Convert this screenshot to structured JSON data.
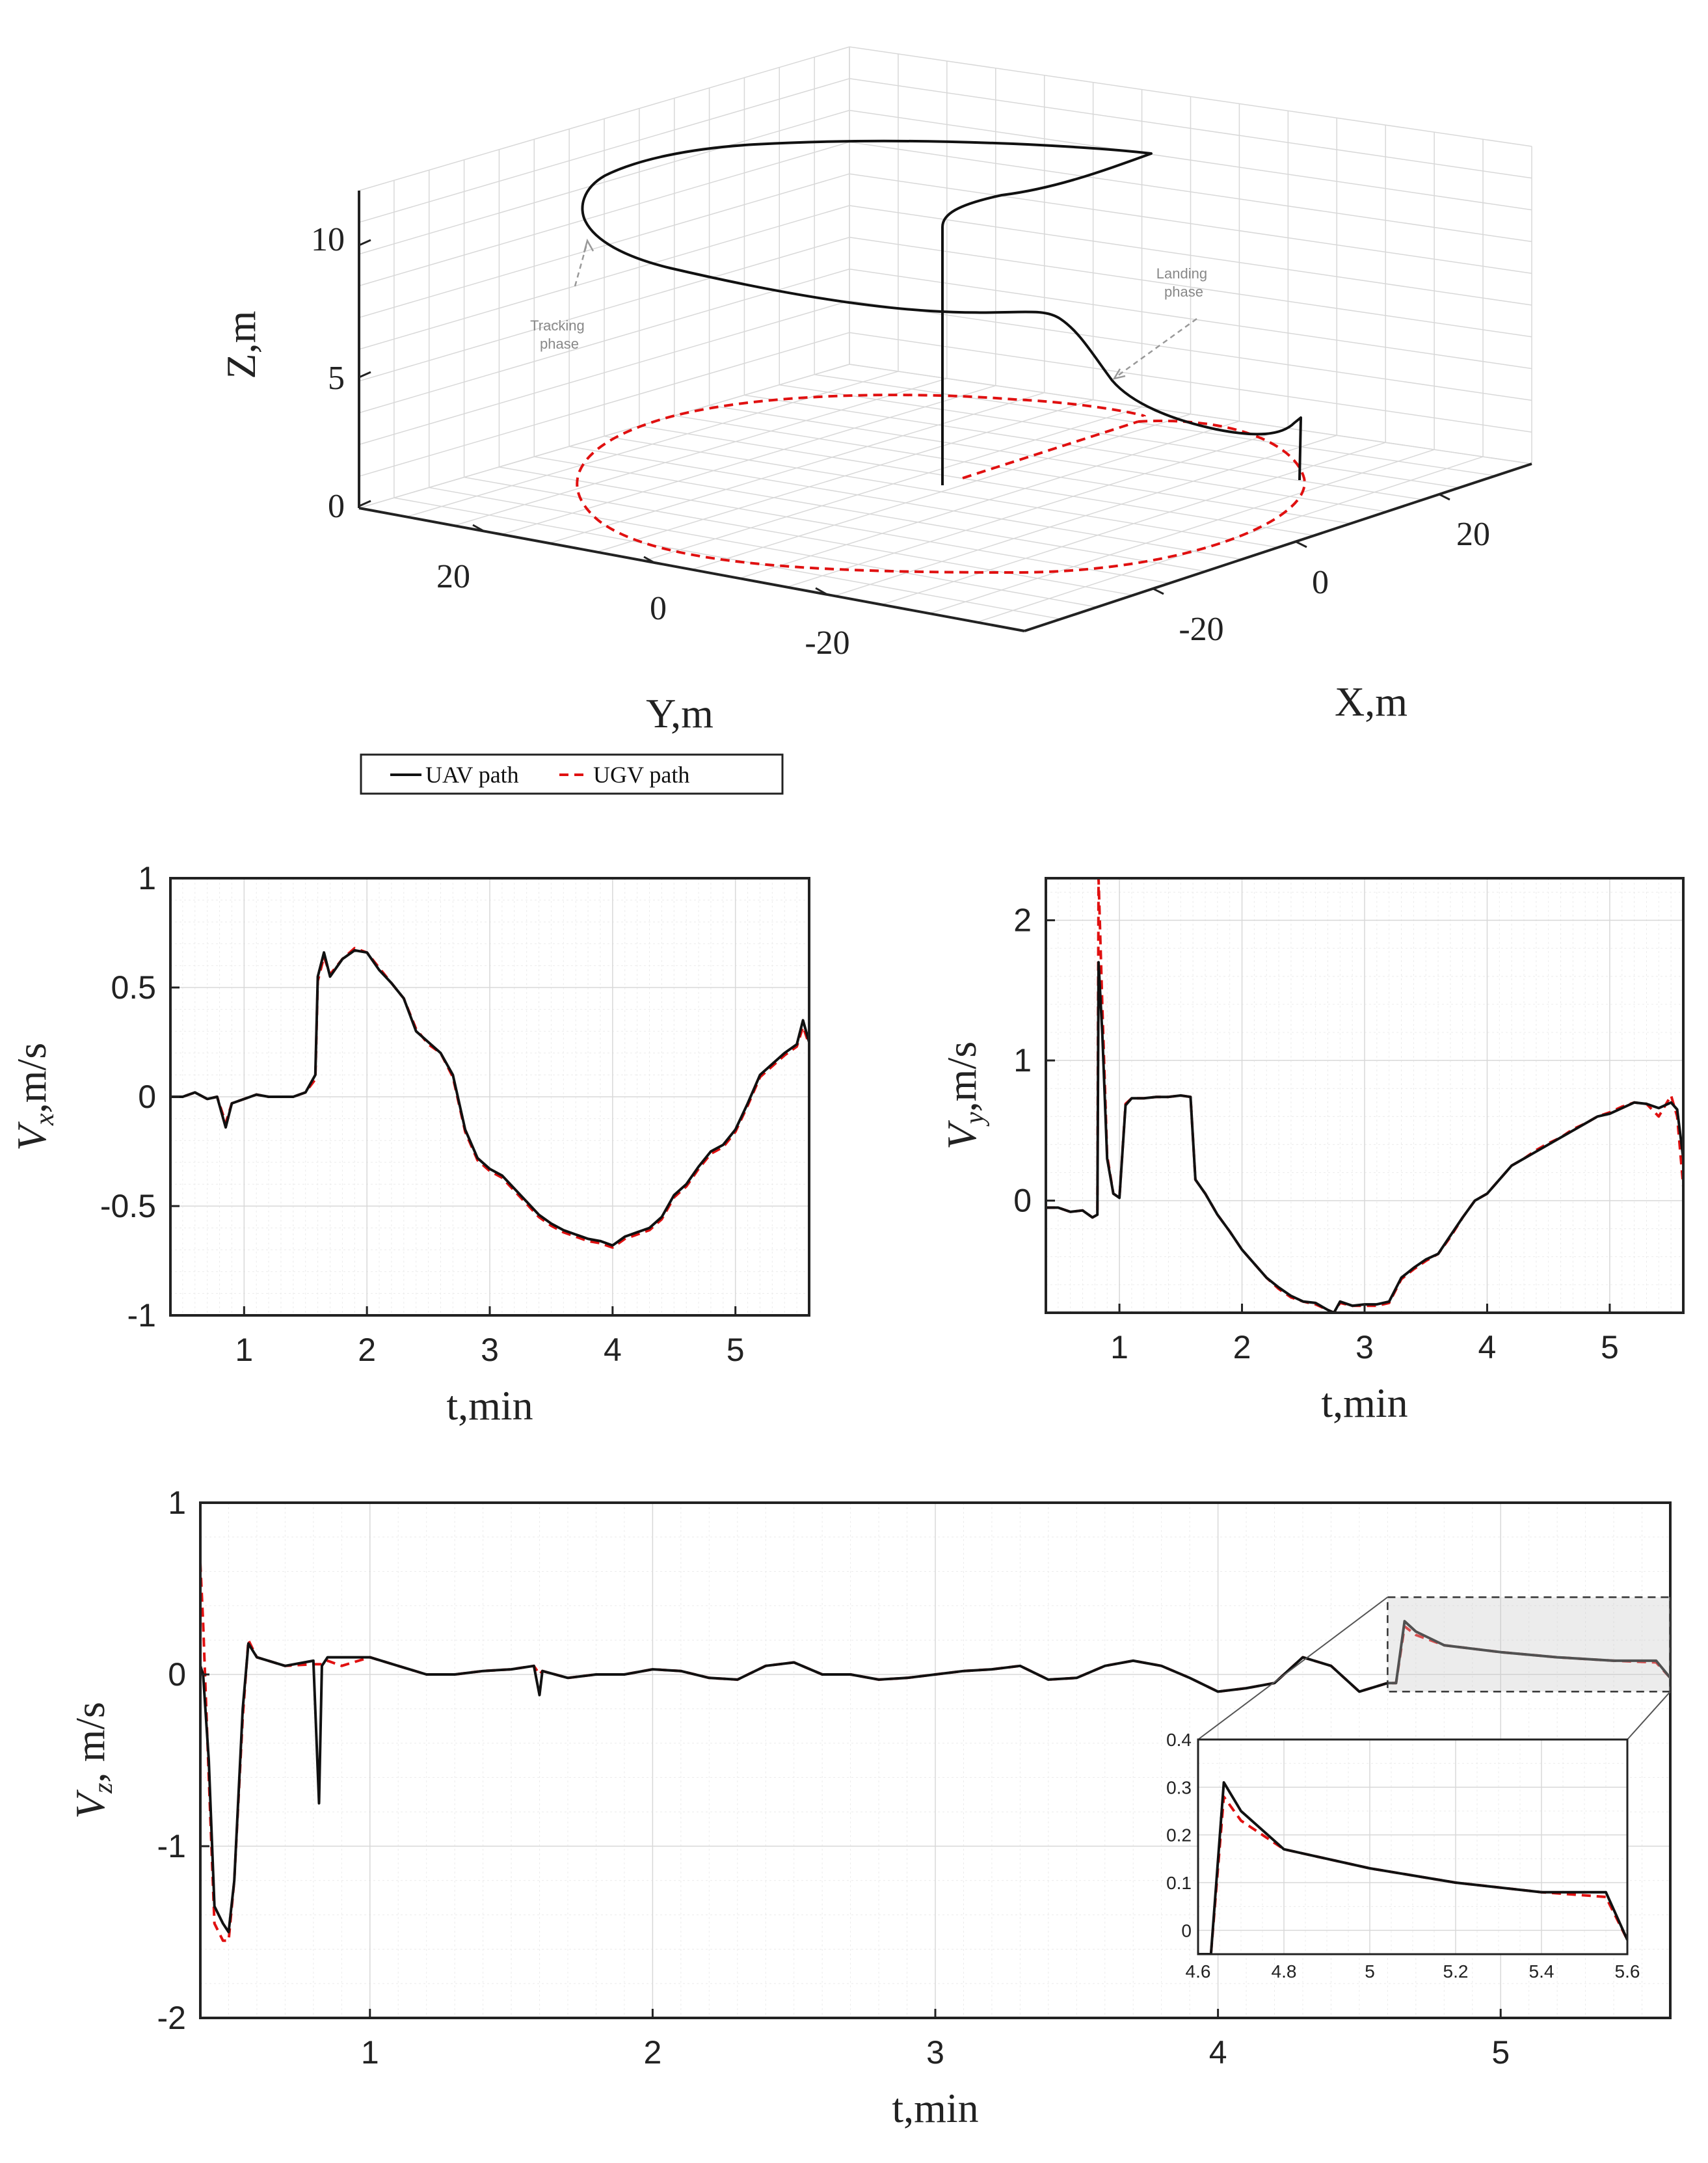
{
  "chart_data": [
    {
      "id": "path3d",
      "type": "line3d",
      "title": "",
      "xlabel": "X,m",
      "ylabel": "Y,m",
      "zlabel": "Z,m",
      "xticks": [
        -20,
        0,
        20
      ],
      "yticks": [
        20,
        0,
        -20
      ],
      "zticks": [
        0,
        5,
        10
      ],
      "xlim": [
        -35,
        35
      ],
      "ylim": [
        -35,
        35
      ],
      "zlim": [
        0,
        12
      ],
      "legend": [
        "UAV path",
        "UGV path"
      ],
      "annotations": [
        {
          "text": "Tracking\nphase"
        },
        {
          "text": "Landing\nphase"
        }
      ],
      "series": [
        {
          "name": "UGV path",
          "style": "red-dashed",
          "shape": "circle of radius ~28 m at Z=0"
        },
        {
          "name": "UAV path",
          "style": "black-solid",
          "shape": "vertical climb to ~11 m, loop tracking, descent to landing"
        }
      ]
    },
    {
      "id": "vx",
      "type": "line",
      "xlabel": "t,min",
      "ylabel": "V_x,m/s",
      "ylabel_main": "V",
      "ylabel_sub": "x",
      "ylabel_unit": ",m/s",
      "xlim": [
        0.4,
        5.6
      ],
      "ylim": [
        -1,
        1
      ],
      "xticks": [
        1,
        2,
        3,
        4,
        5
      ],
      "yticks": [
        1,
        0.5,
        0,
        -0.5,
        -1
      ],
      "ytick_labels": [
        "1",
        "0.5",
        "0",
        "-0.5",
        "-1"
      ],
      "x": [
        0.4,
        0.5,
        0.6,
        0.7,
        0.78,
        0.85,
        0.9,
        1.0,
        1.1,
        1.2,
        1.3,
        1.4,
        1.5,
        1.58,
        1.6,
        1.65,
        1.7,
        1.8,
        1.9,
        2.0,
        2.1,
        2.2,
        2.3,
        2.4,
        2.5,
        2.6,
        2.7,
        2.8,
        2.9,
        3.0,
        3.1,
        3.2,
        3.3,
        3.4,
        3.5,
        3.6,
        3.7,
        3.8,
        3.9,
        4.0,
        4.1,
        4.2,
        4.3,
        4.4,
        4.5,
        4.6,
        4.7,
        4.8,
        4.9,
        5.0,
        5.1,
        5.2,
        5.3,
        5.4,
        5.5,
        5.55,
        5.6
      ],
      "series": [
        {
          "name": "UAV",
          "values": [
            0.0,
            0.0,
            0.02,
            -0.01,
            0.0,
            -0.14,
            -0.03,
            -0.01,
            0.01,
            0.0,
            0.0,
            0.0,
            0.02,
            0.1,
            0.55,
            0.66,
            0.55,
            0.63,
            0.67,
            0.66,
            0.58,
            0.52,
            0.45,
            0.3,
            0.25,
            0.2,
            0.1,
            -0.15,
            -0.28,
            -0.33,
            -0.36,
            -0.42,
            -0.48,
            -0.54,
            -0.58,
            -0.61,
            -0.63,
            -0.65,
            -0.66,
            -0.68,
            -0.64,
            -0.62,
            -0.6,
            -0.55,
            -0.45,
            -0.4,
            -0.32,
            -0.25,
            -0.22,
            -0.15,
            -0.03,
            0.1,
            0.15,
            0.2,
            0.24,
            0.35,
            0.25
          ]
        },
        {
          "name": "UGV",
          "values": [
            0.0,
            0.0,
            0.02,
            -0.01,
            0.0,
            -0.12,
            -0.03,
            -0.01,
            0.01,
            0.0,
            0.0,
            0.0,
            0.02,
            0.08,
            0.53,
            0.64,
            0.56,
            0.63,
            0.68,
            0.66,
            0.59,
            0.52,
            0.45,
            0.31,
            0.24,
            0.2,
            0.09,
            -0.16,
            -0.29,
            -0.34,
            -0.37,
            -0.43,
            -0.49,
            -0.55,
            -0.59,
            -0.62,
            -0.64,
            -0.66,
            -0.67,
            -0.69,
            -0.65,
            -0.63,
            -0.61,
            -0.56,
            -0.46,
            -0.41,
            -0.33,
            -0.26,
            -0.23,
            -0.16,
            -0.04,
            0.09,
            0.14,
            0.19,
            0.23,
            0.32,
            0.24
          ]
        }
      ]
    },
    {
      "id": "vy",
      "type": "line",
      "xlabel": "t,min",
      "ylabel": "V_y,m/s",
      "ylabel_main": "V",
      "ylabel_sub": "y",
      "ylabel_unit": ",m/s",
      "xlim": [
        0.4,
        5.6
      ],
      "ylim": [
        -0.8,
        2.3
      ],
      "xticks": [
        1,
        2,
        3,
        4,
        5
      ],
      "yticks": [
        2,
        1,
        0
      ],
      "ytick_labels": [
        "2",
        "1",
        "0"
      ],
      "x": [
        0.4,
        0.5,
        0.6,
        0.7,
        0.78,
        0.82,
        0.83,
        0.86,
        0.9,
        0.95,
        1.0,
        1.05,
        1.1,
        1.2,
        1.3,
        1.4,
        1.5,
        1.58,
        1.62,
        1.7,
        1.8,
        1.9,
        2.0,
        2.1,
        2.2,
        2.3,
        2.4,
        2.5,
        2.6,
        2.7,
        2.75,
        2.8,
        2.9,
        3.0,
        3.1,
        3.2,
        3.3,
        3.4,
        3.5,
        3.6,
        3.7,
        3.8,
        3.9,
        4.0,
        4.1,
        4.2,
        4.3,
        4.4,
        4.5,
        4.6,
        4.7,
        4.8,
        4.9,
        5.0,
        5.1,
        5.2,
        5.3,
        5.4,
        5.5,
        5.55,
        5.6
      ],
      "series": [
        {
          "name": "UAV",
          "values": [
            -0.05,
            -0.05,
            -0.08,
            -0.07,
            -0.12,
            -0.1,
            1.7,
            1.2,
            0.3,
            0.05,
            0.02,
            0.68,
            0.73,
            0.73,
            0.74,
            0.74,
            0.75,
            0.74,
            0.15,
            0.05,
            -0.1,
            -0.22,
            -0.35,
            -0.45,
            -0.55,
            -0.62,
            -0.68,
            -0.72,
            -0.73,
            -0.78,
            -0.8,
            -0.72,
            -0.75,
            -0.74,
            -0.74,
            -0.72,
            -0.55,
            -0.48,
            -0.42,
            -0.38,
            -0.25,
            -0.12,
            0.0,
            0.05,
            0.15,
            0.25,
            0.3,
            0.35,
            0.4,
            0.45,
            0.5,
            0.55,
            0.6,
            0.62,
            0.66,
            0.7,
            0.69,
            0.66,
            0.7,
            0.65,
            0.3
          ]
        },
        {
          "name": "UGV",
          "values": [
            -0.05,
            -0.05,
            -0.08,
            -0.07,
            -0.12,
            -0.1,
            2.3,
            1.4,
            0.32,
            0.05,
            0.02,
            0.69,
            0.73,
            0.73,
            0.74,
            0.74,
            0.75,
            0.74,
            0.15,
            0.05,
            -0.1,
            -0.22,
            -0.35,
            -0.45,
            -0.55,
            -0.63,
            -0.69,
            -0.72,
            -0.74,
            -0.78,
            -0.8,
            -0.73,
            -0.75,
            -0.75,
            -0.75,
            -0.73,
            -0.56,
            -0.49,
            -0.43,
            -0.38,
            -0.26,
            -0.12,
            0.0,
            0.05,
            0.15,
            0.25,
            0.3,
            0.36,
            0.41,
            0.45,
            0.51,
            0.55,
            0.6,
            0.63,
            0.67,
            0.7,
            0.69,
            0.6,
            0.75,
            0.6,
            0.1
          ]
        }
      ]
    },
    {
      "id": "vz",
      "type": "line",
      "xlabel": "t,min",
      "ylabel": "V_z, m/s",
      "ylabel_main": "V",
      "ylabel_sub": "z",
      "ylabel_unit": ", m/s",
      "xlim": [
        0.4,
        5.6
      ],
      "ylim": [
        -2,
        1
      ],
      "xticks": [
        1,
        2,
        3,
        4,
        5
      ],
      "yticks": [
        1,
        0,
        -1,
        -2
      ],
      "ytick_labels": [
        "1",
        "0",
        "-1",
        "-2"
      ],
      "x": [
        0.4,
        0.41,
        0.43,
        0.45,
        0.48,
        0.5,
        0.52,
        0.55,
        0.57,
        0.6,
        0.7,
        0.8,
        0.82,
        0.83,
        0.85,
        0.9,
        1.0,
        1.1,
        1.2,
        1.3,
        1.4,
        1.5,
        1.58,
        1.6,
        1.61,
        1.7,
        1.8,
        1.9,
        2.0,
        2.1,
        2.2,
        2.3,
        2.4,
        2.5,
        2.6,
        2.7,
        2.8,
        2.9,
        3.0,
        3.1,
        3.2,
        3.3,
        3.4,
        3.5,
        3.6,
        3.7,
        3.8,
        3.9,
        4.0,
        4.1,
        4.2,
        4.3,
        4.4,
        4.5,
        4.6,
        4.63,
        4.66,
        4.7,
        4.8,
        5.0,
        5.2,
        5.4,
        5.55,
        5.6
      ],
      "series": [
        {
          "name": "UAV",
          "values": [
            0.05,
            0.0,
            -0.5,
            -1.35,
            -1.45,
            -1.5,
            -1.2,
            -0.2,
            0.18,
            0.1,
            0.05,
            0.08,
            -0.75,
            0.05,
            0.1,
            0.1,
            0.1,
            0.05,
            0.0,
            0.0,
            0.02,
            0.03,
            0.05,
            -0.12,
            0.02,
            -0.02,
            0.0,
            0.0,
            0.03,
            0.02,
            -0.02,
            -0.03,
            0.05,
            0.07,
            0.0,
            0.0,
            -0.03,
            -0.02,
            0.0,
            0.02,
            0.03,
            0.05,
            -0.03,
            -0.02,
            0.05,
            0.08,
            0.05,
            -0.02,
            -0.1,
            -0.08,
            -0.05,
            0.1,
            0.05,
            -0.1,
            -0.05,
            -0.05,
            0.31,
            0.25,
            0.17,
            0.13,
            0.1,
            0.08,
            0.08,
            -0.02
          ]
        },
        {
          "name": "UGV",
          "values": [
            0.65,
            0.3,
            -0.6,
            -1.45,
            -1.55,
            -1.55,
            -1.2,
            -0.25,
            0.2,
            0.1,
            0.05,
            0.06,
            0.06,
            0.06,
            0.08,
            0.05,
            0.1,
            0.05,
            0.0,
            0.0,
            0.02,
            0.03,
            0.05,
            0.0,
            0.02,
            -0.02,
            0.0,
            0.0,
            0.03,
            0.02,
            -0.02,
            -0.03,
            0.05,
            0.07,
            0.0,
            0.0,
            -0.03,
            -0.02,
            0.0,
            0.02,
            0.03,
            0.05,
            -0.03,
            -0.02,
            0.05,
            0.08,
            0.05,
            -0.02,
            -0.1,
            -0.08,
            -0.05,
            0.1,
            0.05,
            -0.1,
            -0.05,
            -0.05,
            0.28,
            0.23,
            0.17,
            0.13,
            0.1,
            0.08,
            0.07,
            -0.02
          ]
        }
      ],
      "inset": {
        "xlim": [
          4.6,
          5.6
        ],
        "ylim": [
          -0.05,
          0.4
        ],
        "xticks": [
          4.6,
          4.8,
          5,
          5.2,
          5.4,
          5.6
        ],
        "xtick_labels": [
          "4.6",
          "4.8",
          "5",
          "5.2",
          "5.4",
          "5.6"
        ],
        "yticks": [
          0,
          0.1,
          0.2,
          0.3,
          0.4
        ],
        "ytick_labels": [
          "0",
          "0.1",
          "0.2",
          "0.3",
          "0.4"
        ],
        "zoom_region": {
          "x": [
            4.6,
            5.6
          ],
          "y": [
            -0.1,
            0.45
          ]
        }
      }
    }
  ],
  "legend": {
    "uav_label": "UAV path",
    "ugv_label": "UGV path"
  },
  "colors": {
    "uav": "#111111",
    "ugv": "#e01010",
    "axis": "#222222"
  }
}
